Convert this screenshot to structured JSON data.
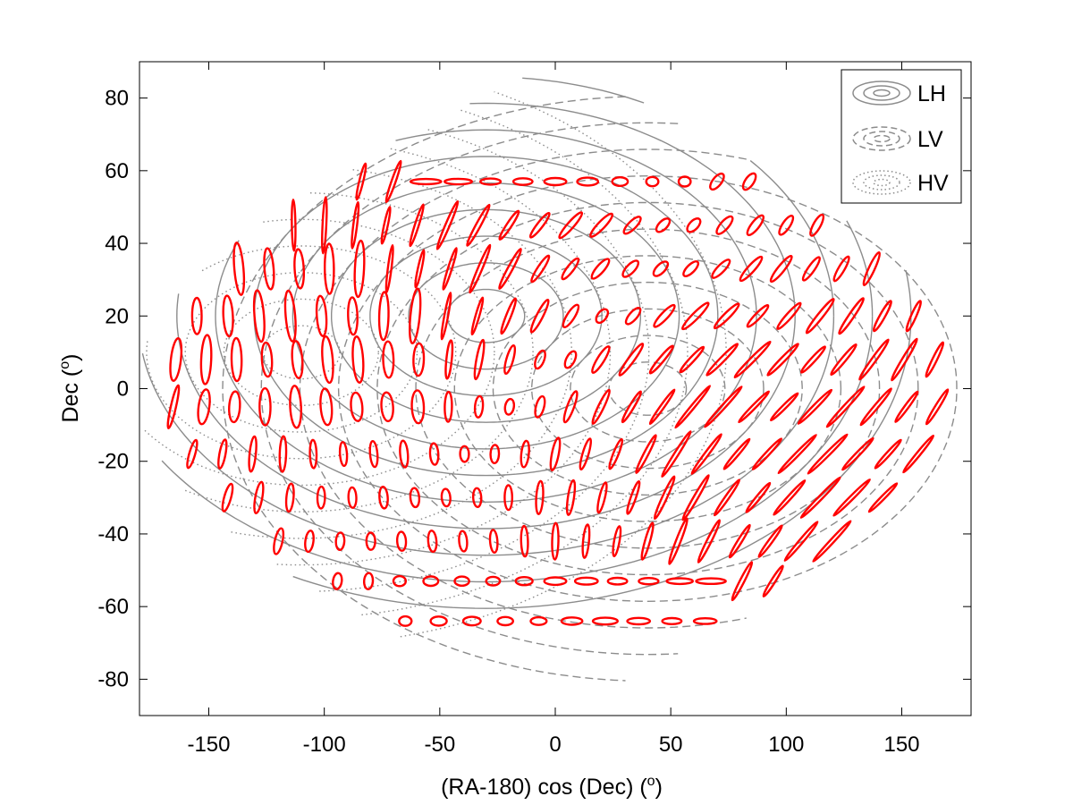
{
  "chart_data": {
    "type": "scatter",
    "title": "",
    "xlabel": "(RA-180) cos (Dec) (",
    "xlabel_sup": "o",
    "xlabel_close": ")",
    "ylabel": "Dec (",
    "ylabel_sup": "o",
    "ylabel_close": ")",
    "xlim": [
      -180,
      180
    ],
    "ylim": [
      -90,
      90
    ],
    "xticks": [
      -150,
      -100,
      -50,
      0,
      50,
      100,
      150
    ],
    "yticks": [
      -80,
      -60,
      -40,
      -20,
      0,
      20,
      40,
      60,
      80
    ],
    "grid": false,
    "legend": {
      "placement": "top-right",
      "entries": [
        {
          "label": "LH",
          "style": "solid"
        },
        {
          "label": "LV",
          "style": "dashed"
        },
        {
          "label": "HV",
          "style": "dotted"
        }
      ]
    },
    "contour_color": "#8c8c8c",
    "ellipse_color": "#ff0000",
    "contour_centers": [
      {
        "name": "LH",
        "style": "solid",
        "x": -30,
        "y": 20,
        "ra_scale": 160,
        "dec_scale": 70
      },
      {
        "name": "LV",
        "style": "dashed",
        "x": 40,
        "y": 0,
        "ra_scale": 160,
        "dec_scale": 70
      },
      {
        "name": "HV",
        "style": "dotted",
        "x": -110,
        "y": 10,
        "ra_scale": 160,
        "dec_scale": 70
      }
    ],
    "ellipse_rows_dec": [
      57,
      45,
      33,
      20,
      8,
      -5,
      -18,
      -30,
      -42,
      -53,
      -64
    ],
    "ellipse_spacing_deg": 13
  }
}
